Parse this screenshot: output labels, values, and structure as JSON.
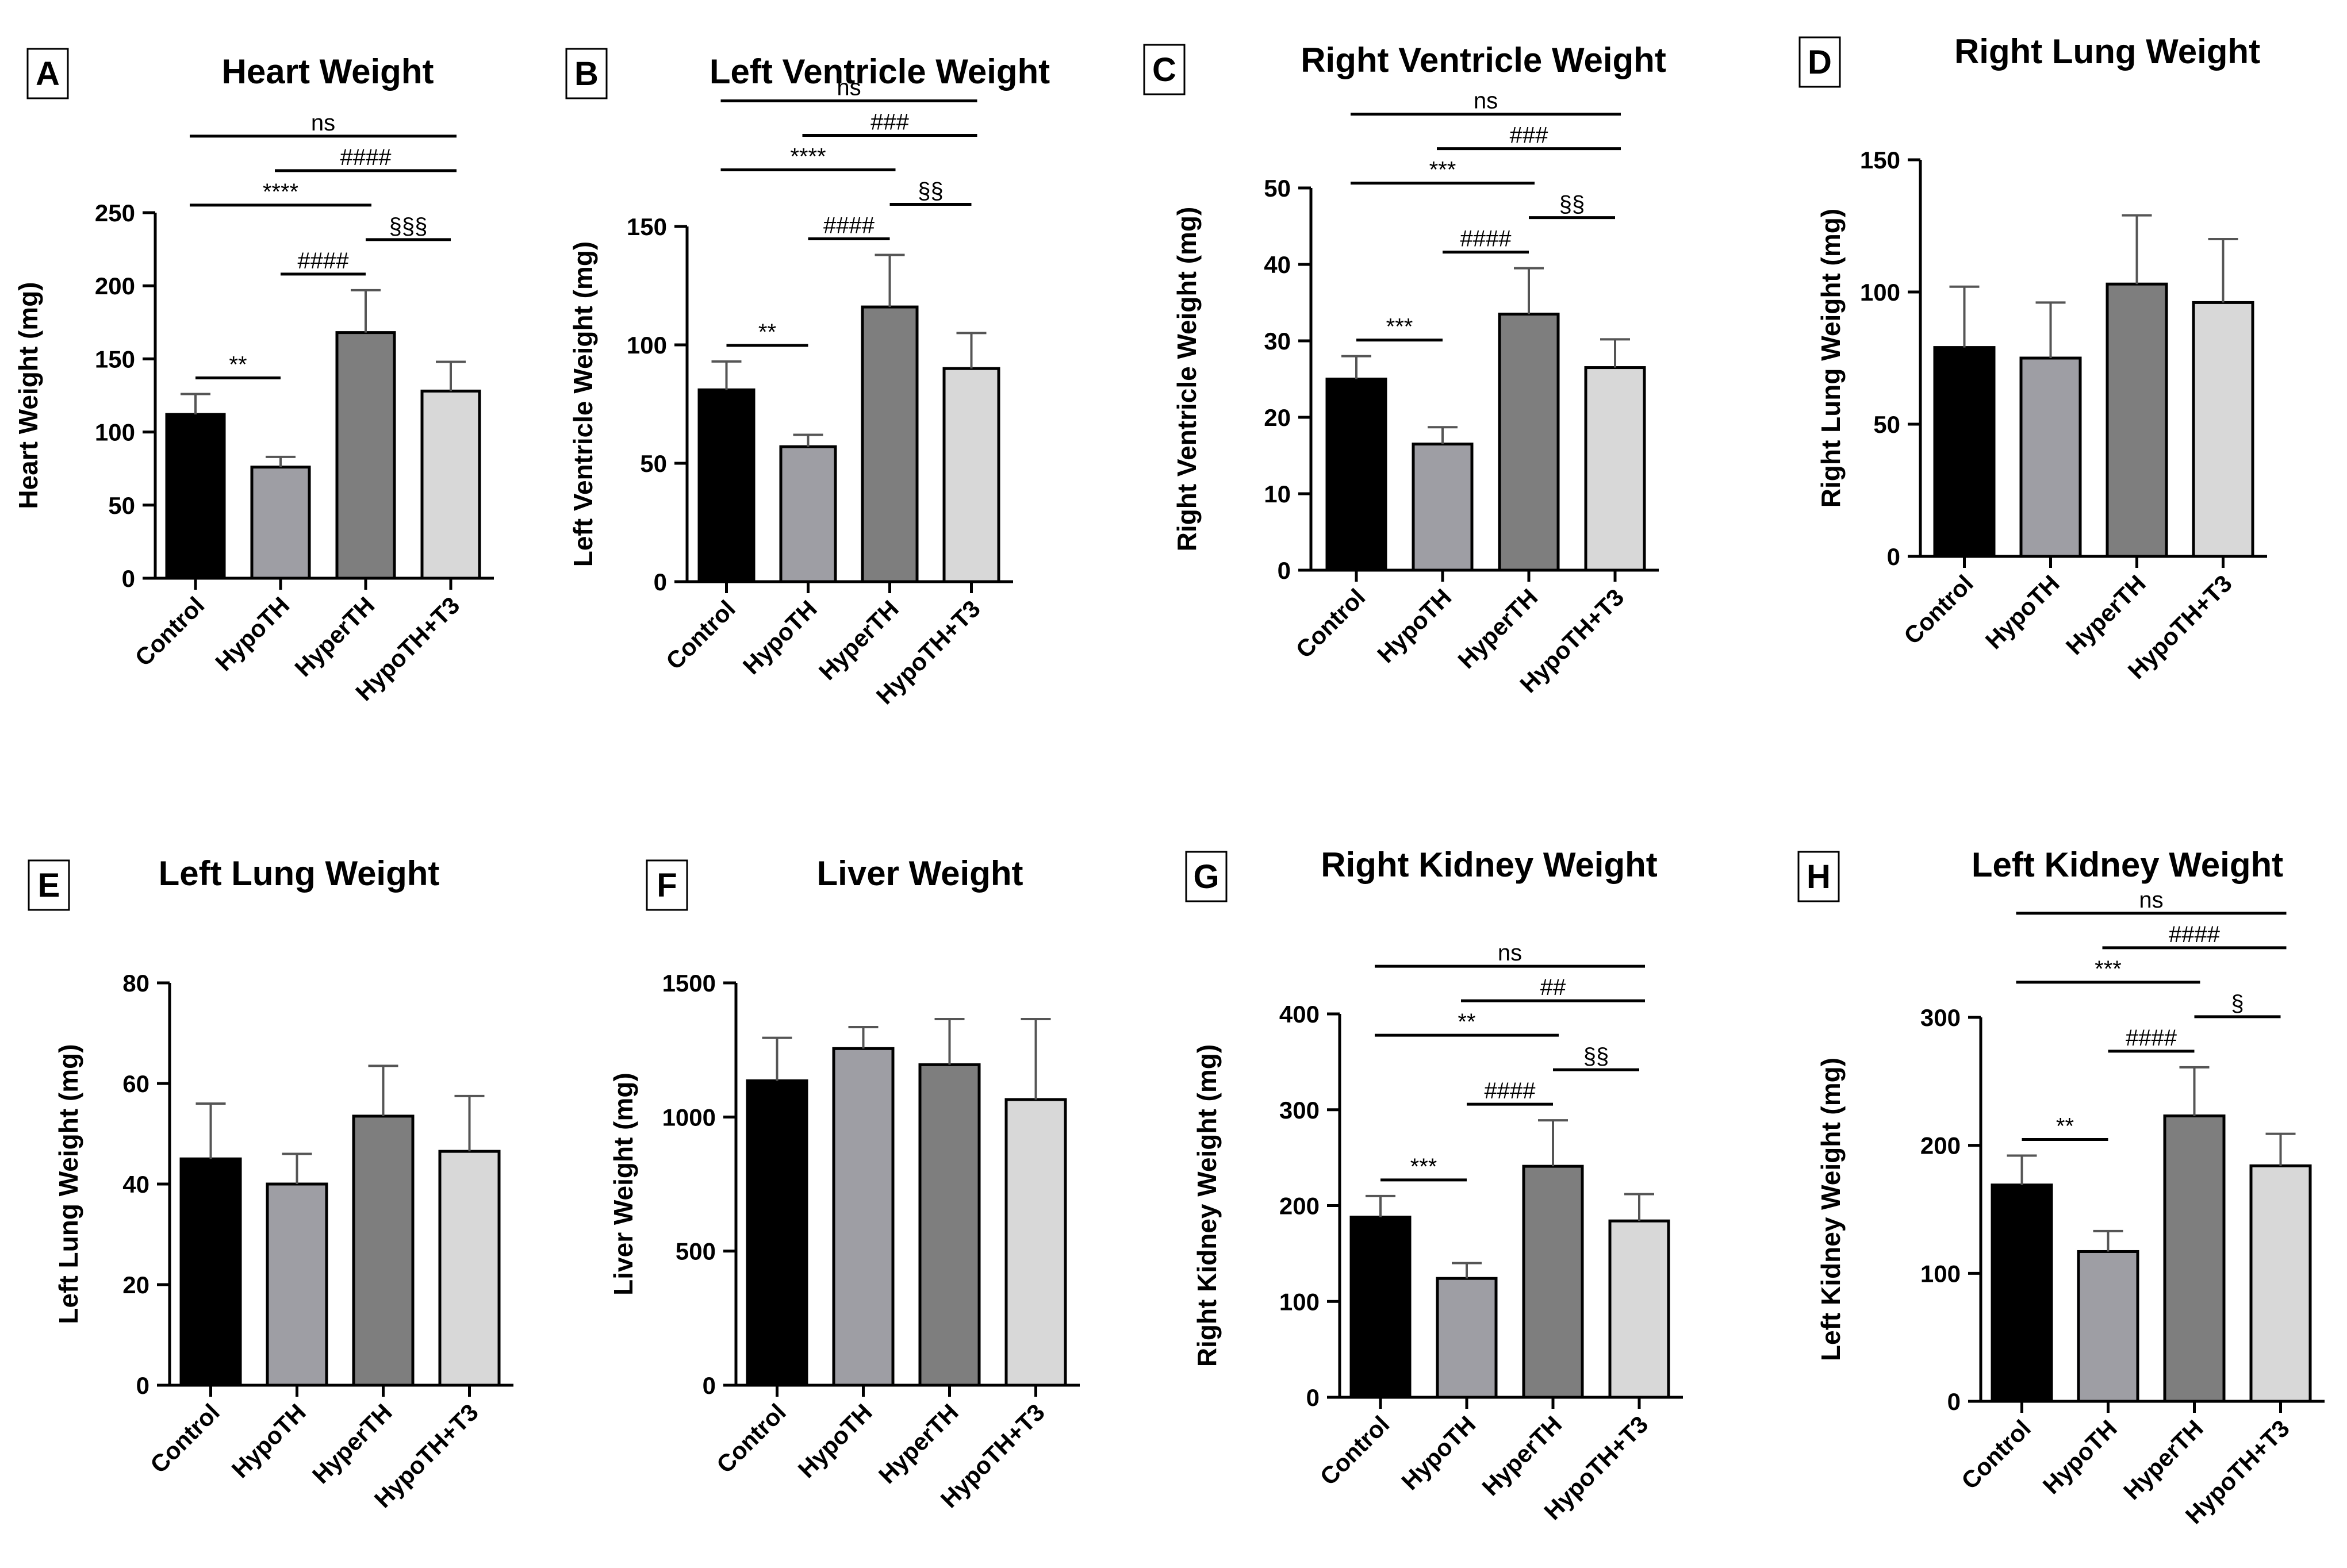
{
  "figure": {
    "charts": [
      {
        "letter": "A",
        "title": "Heart Weight",
        "type": "bar",
        "ylabel": "Heart Weight (mg)",
        "ylim": [
          0,
          250
        ],
        "yticks": [
          0,
          50,
          100,
          150,
          200,
          250
        ],
        "categories": [
          "Control",
          "HypoTH",
          "HyperTH",
          "HypoTH+T3"
        ],
        "values": [
          112,
          76,
          168,
          128
        ],
        "errors": [
          14,
          7,
          29,
          20
        ],
        "colors": [
          "#000000",
          "#9e9ea4",
          "#7e7e7e",
          "#d8d8d8"
        ],
        "comparisons": [
          {
            "from": 0,
            "to": 1,
            "label": "**"
          },
          {
            "from": 0,
            "to": 2,
            "label": "****"
          },
          {
            "from": 1,
            "to": 2,
            "label": "####"
          },
          {
            "from": 2,
            "to": 3,
            "label": "§§§"
          },
          {
            "from": 1,
            "to": 3,
            "label": "####"
          },
          {
            "from": 0,
            "to": 3,
            "label": "ns"
          }
        ]
      },
      {
        "letter": "B",
        "title": "Left Ventricle Weight",
        "type": "bar",
        "ylabel": "Left Ventricle Weight (mg)",
        "ylim": [
          0,
          150
        ],
        "yticks": [
          0,
          50,
          100,
          150
        ],
        "categories": [
          "Control",
          "HypoTH",
          "HyperTH",
          "HypoTH+T3"
        ],
        "values": [
          81,
          57,
          116,
          90
        ],
        "errors": [
          12,
          5,
          22,
          15
        ],
        "colors": [
          "#000000",
          "#9e9ea4",
          "#7e7e7e",
          "#d8d8d8"
        ],
        "comparisons": [
          {
            "from": 0,
            "to": 1,
            "label": "**"
          },
          {
            "from": 2,
            "to": 3,
            "label": "§§"
          },
          {
            "from": 0,
            "to": 2,
            "label": "****"
          },
          {
            "from": 1,
            "to": 2,
            "label": "####"
          },
          {
            "from": 1,
            "to": 3,
            "label": "###"
          },
          {
            "from": 0,
            "to": 3,
            "label": "ns"
          }
        ]
      },
      {
        "letter": "C",
        "title": "Right Ventricle Weight",
        "type": "bar",
        "ylabel": "Right Ventricle Weight (mg)",
        "ylim": [
          0,
          50
        ],
        "yticks": [
          0,
          10,
          20,
          30,
          40,
          50
        ],
        "categories": [
          "Control",
          "HypoTH",
          "HyperTH",
          "HypoTH+T3"
        ],
        "values": [
          25,
          16.5,
          33.5,
          26.5
        ],
        "errors": [
          3,
          2.2,
          6,
          3.7
        ],
        "colors": [
          "#000000",
          "#9e9ea4",
          "#7e7e7e",
          "#d8d8d8"
        ],
        "comparisons": [
          {
            "from": 0,
            "to": 1,
            "label": "***"
          },
          {
            "from": 0,
            "to": 2,
            "label": "***"
          },
          {
            "from": 2,
            "to": 3,
            "label": "§§"
          },
          {
            "from": 1,
            "to": 2,
            "label": "####"
          },
          {
            "from": 1,
            "to": 3,
            "label": "###"
          },
          {
            "from": 0,
            "to": 3,
            "label": "ns"
          }
        ]
      },
      {
        "letter": "D",
        "title": "Right Lung Weight",
        "type": "bar",
        "ylabel": "Right Lung Weight (mg)",
        "ylim": [
          0,
          150
        ],
        "yticks": [
          0,
          50,
          100,
          150
        ],
        "categories": [
          "Control",
          "HypoTH",
          "HyperTH",
          "HypoTH+T3"
        ],
        "values": [
          79,
          75,
          103,
          96
        ],
        "errors": [
          23,
          21,
          26,
          24
        ],
        "colors": [
          "#000000",
          "#9e9ea4",
          "#7e7e7e",
          "#d8d8d8"
        ],
        "comparisons": []
      },
      {
        "letter": "E",
        "title": "Left Lung Weight",
        "type": "bar",
        "ylabel": "Left Lung Weight (mg)",
        "ylim": [
          0,
          80
        ],
        "yticks": [
          0,
          20,
          40,
          60,
          80
        ],
        "categories": [
          "Control",
          "HypoTH",
          "HyperTH",
          "HypoTH+T3"
        ],
        "values": [
          45,
          40,
          53.5,
          46.5
        ],
        "errors": [
          11,
          6,
          10,
          11
        ],
        "colors": [
          "#000000",
          "#9e9ea4",
          "#7e7e7e",
          "#d8d8d8"
        ],
        "comparisons": []
      },
      {
        "letter": "F",
        "title": "Liver Weight",
        "type": "bar",
        "ylabel": "Liver Weight (mg)",
        "ylim": [
          0,
          1500
        ],
        "yticks": [
          0,
          500,
          1000,
          1500
        ],
        "categories": [
          "Control",
          "HypoTH",
          "HyperTH",
          "HypoTH+T3"
        ],
        "values": [
          1135,
          1255,
          1195,
          1065
        ],
        "errors": [
          160,
          80,
          170,
          300
        ],
        "colors": [
          "#000000",
          "#9e9ea4",
          "#7e7e7e",
          "#d8d8d8"
        ],
        "comparisons": []
      },
      {
        "letter": "G",
        "title": "Right Kidney Weight",
        "type": "bar",
        "ylabel": "Right Kidney Weight (mg)",
        "ylim": [
          0,
          400
        ],
        "yticks": [
          0,
          100,
          200,
          300,
          400
        ],
        "categories": [
          "Control",
          "HypoTH",
          "HyperTH",
          "HypoTH+T3"
        ],
        "values": [
          188,
          124,
          241,
          184
        ],
        "errors": [
          22,
          16,
          48,
          28
        ],
        "colors": [
          "#000000",
          "#9e9ea4",
          "#7e7e7e",
          "#d8d8d8"
        ],
        "comparisons": [
          {
            "from": 0,
            "to": 1,
            "label": "***"
          },
          {
            "from": 0,
            "to": 2,
            "label": "**"
          },
          {
            "from": 2,
            "to": 3,
            "label": "§§"
          },
          {
            "from": 1,
            "to": 2,
            "label": "####"
          },
          {
            "from": 1,
            "to": 3,
            "label": "##"
          },
          {
            "from": 0,
            "to": 3,
            "label": "ns"
          }
        ]
      },
      {
        "letter": "H",
        "title": "Left Kidney Weight",
        "type": "bar",
        "ylabel": "Left Kidney Weight (mg)",
        "ylim": [
          0,
          300
        ],
        "yticks": [
          0,
          100,
          200,
          300
        ],
        "categories": [
          "Control",
          "HypoTH",
          "HyperTH",
          "HypoTH+T3"
        ],
        "values": [
          169,
          117,
          223,
          184
        ],
        "errors": [
          23,
          16,
          38,
          25
        ],
        "colors": [
          "#000000",
          "#9e9ea4",
          "#7e7e7e",
          "#d8d8d8"
        ],
        "comparisons": [
          {
            "from": 0,
            "to": 1,
            "label": "**"
          },
          {
            "from": 0,
            "to": 2,
            "label": "***"
          },
          {
            "from": 2,
            "to": 3,
            "label": "§"
          },
          {
            "from": 1,
            "to": 2,
            "label": "####"
          },
          {
            "from": 1,
            "to": 3,
            "label": "####"
          },
          {
            "from": 0,
            "to": 3,
            "label": "ns"
          }
        ]
      }
    ]
  }
}
